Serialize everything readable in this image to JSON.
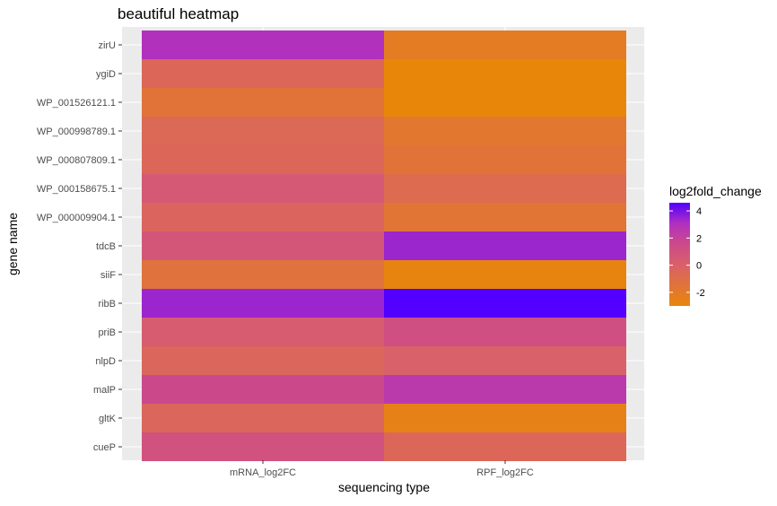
{
  "chart_data": {
    "type": "heatmap",
    "title": "beautiful heatmap",
    "xlabel": "sequencing type",
    "ylabel": "gene name",
    "x_categories": [
      "mRNA_log2FC",
      "RPF_log2FC"
    ],
    "y_categories": [
      "zirU",
      "ygiD",
      "WP_001526121.1",
      "WP_000998789.1",
      "WP_000807809.1",
      "WP_000158675.1",
      "WP_000009904.1",
      "tdcB",
      "siiF",
      "ribB",
      "priB",
      "nlpD",
      "malP",
      "gltK",
      "cueP"
    ],
    "values": [
      [
        3.0,
        -2.2
      ],
      [
        -0.5,
        -3.0
      ],
      [
        -1.5,
        -3.0
      ],
      [
        -0.6,
        -1.8
      ],
      [
        -0.5,
        -1.5
      ],
      [
        0.5,
        -0.8
      ],
      [
        -0.3,
        -1.6
      ],
      [
        0.7,
        3.4
      ],
      [
        -1.4,
        -2.8
      ],
      [
        3.4,
        4.6
      ],
      [
        0.3,
        1.2
      ],
      [
        -0.4,
        0.0
      ],
      [
        1.6,
        2.5
      ],
      [
        -0.4,
        -2.6
      ],
      [
        1.0,
        -0.5
      ]
    ],
    "legend": {
      "title": "log2fold_change",
      "position": "right",
      "ticks": [
        4,
        2,
        0,
        -2
      ],
      "range": [
        -3,
        4.6
      ],
      "colors": {
        "low": "#e8860a",
        "mid": "#cc4a8a",
        "high": "#5200ff"
      }
    },
    "grid": true,
    "panel_background": "#ebebeb"
  }
}
